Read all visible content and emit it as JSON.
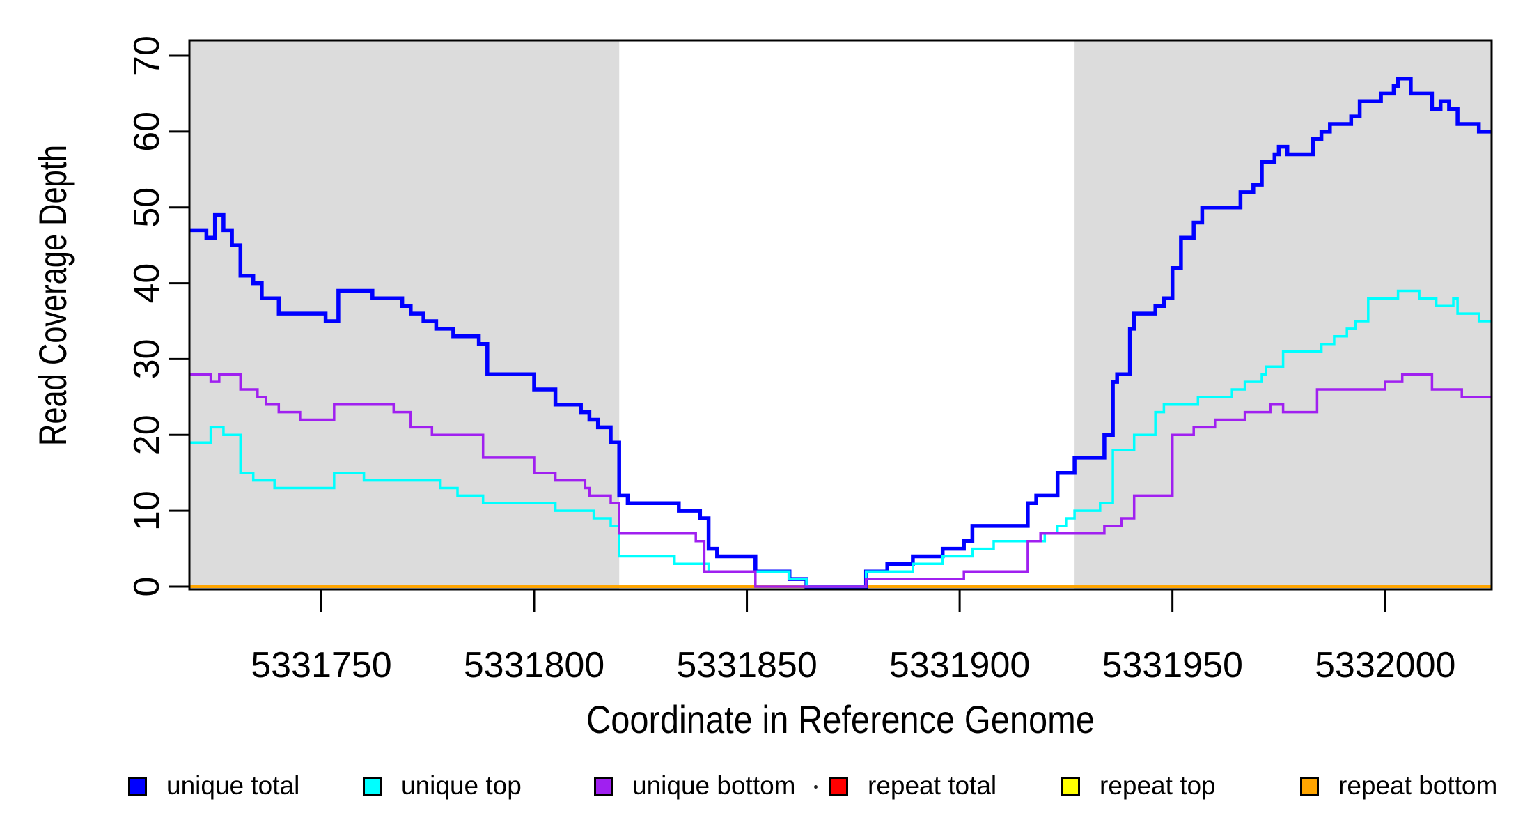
{
  "chart_data": {
    "type": "line",
    "subtype": "step",
    "title": "",
    "xlabel": "Coordinate in Reference Genome",
    "ylabel": "Read Coverage Depth",
    "xlim": [
      5331719,
      5332025
    ],
    "ylim": [
      0,
      70
    ],
    "x_ticks": [
      "5331750",
      "5331800",
      "5331850",
      "5331900",
      "5331950",
      "5332000"
    ],
    "y_ticks": [
      "0",
      "10",
      "20",
      "30",
      "40",
      "50",
      "60",
      "70"
    ],
    "grid": false,
    "legend_position": "bottom",
    "shade_color": "#DCDCDC",
    "shaded_regions": [
      {
        "x0": 5331719,
        "x1": 5331820
      },
      {
        "x0": 5331927,
        "x1": 5332025
      }
    ],
    "series": [
      {
        "name": "repeat total",
        "color": "#FF0000",
        "width": 3,
        "steps": [
          [
            5331719,
            0
          ]
        ]
      },
      {
        "name": "repeat top",
        "color": "#FFFF00",
        "width": 3,
        "steps": [
          [
            5331719,
            0
          ]
        ]
      },
      {
        "name": "repeat bottom",
        "color": "#FFA500",
        "width": 4,
        "steps": [
          [
            5331719,
            0
          ]
        ]
      },
      {
        "name": "unique total",
        "color": "#0000FF",
        "width": 5.5,
        "steps": [
          [
            5331719,
            47
          ],
          [
            5331723,
            46
          ],
          [
            5331725,
            49
          ],
          [
            5331727,
            47
          ],
          [
            5331729,
            45
          ],
          [
            5331731,
            41
          ],
          [
            5331734,
            40
          ],
          [
            5331736,
            38
          ],
          [
            5331740,
            36
          ],
          [
            5331751,
            35
          ],
          [
            5331754,
            39
          ],
          [
            5331762,
            38
          ],
          [
            5331769,
            37
          ],
          [
            5331771,
            36
          ],
          [
            5331774,
            35
          ],
          [
            5331777,
            34
          ],
          [
            5331781,
            33
          ],
          [
            5331787,
            32
          ],
          [
            5331789,
            28
          ],
          [
            5331800,
            26
          ],
          [
            5331805,
            24
          ],
          [
            5331811,
            23
          ],
          [
            5331813,
            22
          ],
          [
            5331815,
            21
          ],
          [
            5331818,
            19
          ],
          [
            5331820,
            12
          ],
          [
            5331822,
            11
          ],
          [
            5331834,
            10
          ],
          [
            5331839,
            9
          ],
          [
            5331841,
            5
          ],
          [
            5331843,
            4
          ],
          [
            5331852,
            2
          ],
          [
            5331860,
            1
          ],
          [
            5331864,
            0
          ],
          [
            5331878,
            2
          ],
          [
            5331883,
            3
          ],
          [
            5331889,
            4
          ],
          [
            5331896,
            5
          ],
          [
            5331901,
            6
          ],
          [
            5331903,
            8
          ],
          [
            5331916,
            11
          ],
          [
            5331918,
            12
          ],
          [
            5331923,
            15
          ],
          [
            5331927,
            17
          ],
          [
            5331934,
            20
          ],
          [
            5331936,
            27
          ],
          [
            5331937,
            28
          ],
          [
            5331940,
            34
          ],
          [
            5331941,
            36
          ],
          [
            5331946,
            37
          ],
          [
            5331948,
            38
          ],
          [
            5331950,
            42
          ],
          [
            5331952,
            46
          ],
          [
            5331955,
            48
          ],
          [
            5331957,
            50
          ],
          [
            5331966,
            52
          ],
          [
            5331969,
            53
          ],
          [
            5331971,
            56
          ],
          [
            5331974,
            57
          ],
          [
            5331975,
            58
          ],
          [
            5331977,
            57
          ],
          [
            5331983,
            59
          ],
          [
            5331985,
            60
          ],
          [
            5331987,
            61
          ],
          [
            5331992,
            62
          ],
          [
            5331994,
            64
          ],
          [
            5331999,
            65
          ],
          [
            5332002,
            66
          ],
          [
            5332003,
            67
          ],
          [
            5332006,
            65
          ],
          [
            5332011,
            63
          ],
          [
            5332013,
            64
          ],
          [
            5332015,
            63
          ],
          [
            5332017,
            61
          ],
          [
            5332022,
            60
          ]
        ]
      },
      {
        "name": "unique top",
        "color": "#00FFFF",
        "width": 3.5,
        "steps": [
          [
            5331719,
            19
          ],
          [
            5331724,
            21
          ],
          [
            5331727,
            20
          ],
          [
            5331731,
            15
          ],
          [
            5331734,
            14
          ],
          [
            5331739,
            13
          ],
          [
            5331753,
            15
          ],
          [
            5331760,
            14
          ],
          [
            5331778,
            13
          ],
          [
            5331782,
            12
          ],
          [
            5331788,
            11
          ],
          [
            5331805,
            10
          ],
          [
            5331814,
            9
          ],
          [
            5331818,
            8
          ],
          [
            5331820,
            4
          ],
          [
            5331833,
            3
          ],
          [
            5331841,
            2
          ],
          [
            5331860,
            1
          ],
          [
            5331864,
            0
          ],
          [
            5331878,
            2
          ],
          [
            5331889,
            3
          ],
          [
            5331896,
            4
          ],
          [
            5331903,
            5
          ],
          [
            5331908,
            6
          ],
          [
            5331920,
            7
          ],
          [
            5331923,
            8
          ],
          [
            5331925,
            9
          ],
          [
            5331927,
            10
          ],
          [
            5331933,
            11
          ],
          [
            5331936,
            18
          ],
          [
            5331941,
            20
          ],
          [
            5331946,
            23
          ],
          [
            5331948,
            24
          ],
          [
            5331956,
            25
          ],
          [
            5331964,
            26
          ],
          [
            5331967,
            27
          ],
          [
            5331971,
            28
          ],
          [
            5331972,
            29
          ],
          [
            5331976,
            31
          ],
          [
            5331985,
            32
          ],
          [
            5331988,
            33
          ],
          [
            5331991,
            34
          ],
          [
            5331993,
            35
          ],
          [
            5331996,
            38
          ],
          [
            5332003,
            39
          ],
          [
            5332008,
            38
          ],
          [
            5332012,
            37
          ],
          [
            5332016,
            38
          ],
          [
            5332017,
            36
          ],
          [
            5332022,
            35
          ]
        ]
      },
      {
        "name": "unique bottom",
        "color": "#A020F0",
        "width": 3.5,
        "steps": [
          [
            5331719,
            28
          ],
          [
            5331724,
            27
          ],
          [
            5331726,
            28
          ],
          [
            5331731,
            26
          ],
          [
            5331735,
            25
          ],
          [
            5331737,
            24
          ],
          [
            5331740,
            23
          ],
          [
            5331745,
            22
          ],
          [
            5331753,
            24
          ],
          [
            5331767,
            23
          ],
          [
            5331771,
            21
          ],
          [
            5331776,
            20
          ],
          [
            5331788,
            17
          ],
          [
            5331800,
            15
          ],
          [
            5331805,
            14
          ],
          [
            5331812,
            13
          ],
          [
            5331813,
            12
          ],
          [
            5331818,
            11
          ],
          [
            5331820,
            7
          ],
          [
            5331838,
            6
          ],
          [
            5331840,
            2
          ],
          [
            5331852,
            0
          ],
          [
            5331878,
            1
          ],
          [
            5331901,
            2
          ],
          [
            5331916,
            6
          ],
          [
            5331919,
            7
          ],
          [
            5331934,
            8
          ],
          [
            5331938,
            9
          ],
          [
            5331941,
            12
          ],
          [
            5331950,
            20
          ],
          [
            5331955,
            21
          ],
          [
            5331960,
            22
          ],
          [
            5331967,
            23
          ],
          [
            5331973,
            24
          ],
          [
            5331976,
            23
          ],
          [
            5331984,
            26
          ],
          [
            5332000,
            27
          ],
          [
            5332004,
            28
          ],
          [
            5332011,
            26
          ],
          [
            5332018,
            25
          ]
        ]
      }
    ]
  },
  "legend": {
    "items": [
      {
        "label": "unique total",
        "color": "#0000FF"
      },
      {
        "label": "unique top",
        "color": "#00FFFF"
      },
      {
        "label": "unique bottom",
        "color": "#A020F0"
      },
      {
        "label": "repeat total",
        "color": "#FF0000"
      },
      {
        "label": "repeat top",
        "color": "#FFFF00"
      },
      {
        "label": "repeat bottom",
        "color": "#FFA500"
      }
    ],
    "stray_dot": true
  }
}
